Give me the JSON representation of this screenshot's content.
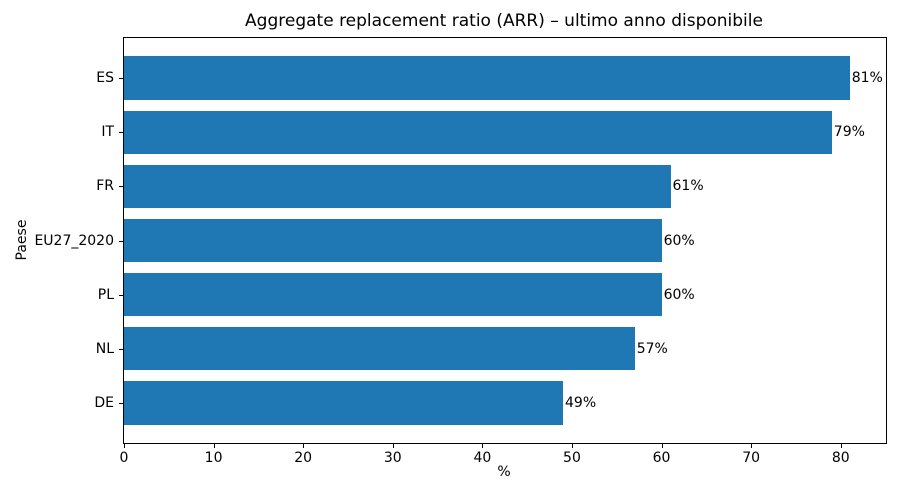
{
  "chart_data": {
    "type": "bar",
    "orientation": "horizontal",
    "title": "Aggregate replacement ratio (ARR) – ultimo anno disponibile",
    "xlabel": "%",
    "ylabel": "Paese",
    "categories": [
      "ES",
      "IT",
      "FR",
      "EU27_2020",
      "PL",
      "NL",
      "DE"
    ],
    "values": [
      81,
      79,
      61,
      60,
      60,
      57,
      49
    ],
    "value_labels": [
      "81%",
      "79%",
      "61%",
      "60%",
      "60%",
      "57%",
      "49%"
    ],
    "xlim": [
      0,
      85.05
    ],
    "xticks": [
      0,
      10,
      20,
      30,
      40,
      50,
      60,
      70,
      80
    ],
    "bar_color": "#1f77b4",
    "bar_height_fraction": 0.8,
    "y_edge_padding_units": 0.74,
    "grid": false,
    "legend": false
  }
}
